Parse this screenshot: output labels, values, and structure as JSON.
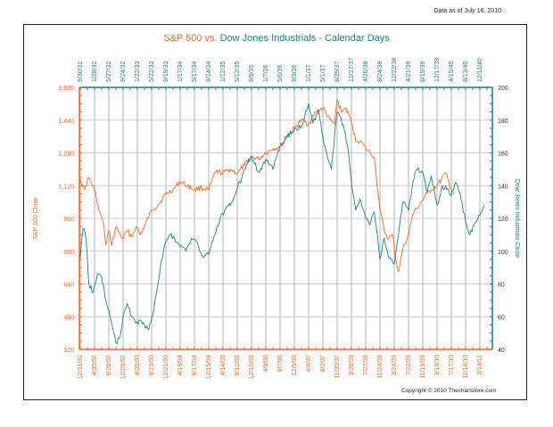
{
  "header": {
    "as_of": "Data as of July 16, 2010",
    "title_part1": "S&P 500 vs.",
    "title_part2": "Dow Jones Industrials - Calendar Days"
  },
  "footer": {
    "copyright": "Copyright © 2010 Thechartstore.com"
  },
  "colors": {
    "sp500": "#f26522",
    "dow": "#1b7f7f",
    "grid": "#cccccc"
  },
  "chart_data": {
    "type": "line",
    "title": "S&P 500 vs. Dow Jones Industrials - Calendar Days",
    "grid": true,
    "left_axis": {
      "label": "S&P 500 Close",
      "range": [
        320,
        1600
      ],
      "ticks": [
        "320",
        "480",
        "640",
        "800",
        "960",
        "1,120",
        "1,280",
        "1,440",
        "1,600"
      ]
    },
    "right_axis": {
      "label": "Dow Jones Industrials Close",
      "range": [
        40,
        200
      ],
      "ticks": [
        "40",
        "60",
        "80",
        "100",
        "120",
        "140",
        "160",
        "180",
        "200"
      ]
    },
    "bottom_axis": {
      "series": "S&P 500",
      "ticks": [
        "12/31/01",
        "4/30/02",
        "8/28/02",
        "12/26/02",
        "4/25/03",
        "8/23/03",
        "12/21/03",
        "4/19/04",
        "8/17/04",
        "12/15/04",
        "4/14/05",
        "8/12/05",
        "12/10/05",
        "4/9/06",
        "8/7/06",
        "12/5/06",
        "4/4/07",
        "8/2/07",
        "11/30/07",
        "3/28/08",
        "7/27/08",
        "11/24/08",
        "3/24/09",
        "7/22/09",
        "11/19/09",
        "3/19/10",
        "7/17/10",
        "11/14/10",
        "3/14/11"
      ]
    },
    "top_axis": {
      "series": "Dow Jones Industrials",
      "ticks": [
        "9/30/31",
        "1/28/32",
        "5/27/32",
        "9/24/32",
        "1/22/33",
        "5/22/33",
        "9/19/33",
        "1/17/34",
        "5/17/34",
        "9/14/34",
        "1/12/35",
        "5/12/35",
        "9/9/35",
        "1/7/36",
        "5/6/36",
        "9/3/36",
        "1/1/37",
        "5/1/37",
        "8/29/37",
        "12/27/37",
        "4/26/38",
        "8/24/38",
        "12/22/38",
        "4/21/39",
        "8/19/39",
        "12/17/39",
        "4/15/40",
        "8/13/40",
        "12/11/40"
      ]
    },
    "series": [
      {
        "name": "S&P 500",
        "axis": "left",
        "x_index": [
          0,
          0.3,
          0.6,
          1,
          1.3,
          1.6,
          1.8,
          2,
          2.2,
          2.5,
          2.8,
          3,
          3.3,
          3.6,
          3.9,
          4.2,
          4.5,
          5,
          5.5,
          6,
          6.5,
          7,
          7.5,
          8,
          8.5,
          9,
          9.5,
          10,
          10.5,
          11,
          11.5,
          12,
          12.5,
          13,
          13.5,
          14,
          14.5,
          15,
          15.5,
          16,
          16.5,
          17,
          17.5,
          17.8,
          18,
          18.3,
          18.6,
          19,
          19.3,
          19.6,
          20,
          20.3,
          20.6,
          21,
          21.3,
          21.6,
          21.9,
          22.1,
          22.3,
          22.6,
          23,
          23.3,
          23.6,
          24,
          24.3,
          24.6,
          25,
          25.3,
          25.6,
          26,
          26.2
        ],
        "values": [
          1150,
          1100,
          1160,
          1100,
          1000,
          940,
          830,
          900,
          830,
          920,
          880,
          860,
          900,
          870,
          920,
          880,
          920,
          1000,
          1030,
          1080,
          1100,
          1140,
          1120,
          1100,
          1110,
          1100,
          1190,
          1180,
          1200,
          1180,
          1220,
          1260,
          1250,
          1280,
          1300,
          1310,
          1360,
          1400,
          1440,
          1420,
          1480,
          1500,
          1440,
          1420,
          1540,
          1480,
          1500,
          1430,
          1340,
          1340,
          1300,
          1280,
          1260,
          1000,
          900,
          860,
          880,
          760,
          700,
          810,
          880,
          980,
          1010,
          1050,
          1080,
          1100,
          1120,
          1150,
          1180,
          1100,
          1080
        ]
      },
      {
        "name": "Dow Jones Industrials",
        "axis": "right",
        "x_index": [
          0,
          0.2,
          0.4,
          0.6,
          0.9,
          1.2,
          1.5,
          1.8,
          2.1,
          2.3,
          2.5,
          2.8,
          3,
          3.3,
          3.6,
          3.9,
          4.2,
          4.5,
          4.8,
          5.1,
          5.4,
          5.7,
          6,
          6.3,
          6.6,
          7,
          7.4,
          7.8,
          8.2,
          8.6,
          9,
          9.4,
          9.8,
          10.2,
          10.6,
          11,
          11.5,
          12,
          12.5,
          13,
          13.5,
          14,
          14.5,
          15,
          15.5,
          16,
          16.3,
          16.7,
          17,
          17.3,
          17.6,
          18,
          18.2,
          18.5,
          18.8,
          19,
          19.3,
          19.6,
          20,
          20.3,
          20.6,
          21,
          21.3,
          21.6,
          22,
          22.3,
          22.6,
          23,
          23.3,
          23.6,
          24,
          24.3,
          24.6,
          25,
          25.3,
          25.6,
          26,
          26.3,
          26.6,
          27,
          27.3,
          27.6,
          28,
          28.3
        ],
        "values": [
          96,
          114,
          108,
          80,
          75,
          86,
          84,
          70,
          60,
          52,
          44,
          48,
          60,
          68,
          60,
          56,
          58,
          55,
          52,
          62,
          78,
          95,
          106,
          110,
          108,
          103,
          100,
          108,
          105,
          96,
          98,
          110,
          120,
          126,
          130,
          138,
          150,
          158,
          148,
          156,
          150,
          164,
          170,
          174,
          176,
          190,
          178,
          186,
          170,
          158,
          150,
          185,
          182,
          174,
          160,
          142,
          125,
          132,
          120,
          116,
          124,
          95,
          108,
          96,
          92,
          110,
          130,
          125,
          142,
          150,
          148,
          136,
          146,
          128,
          138,
          140,
          134,
          142,
          136,
          118,
          110,
          116,
          122,
          128
        ]
      }
    ]
  }
}
